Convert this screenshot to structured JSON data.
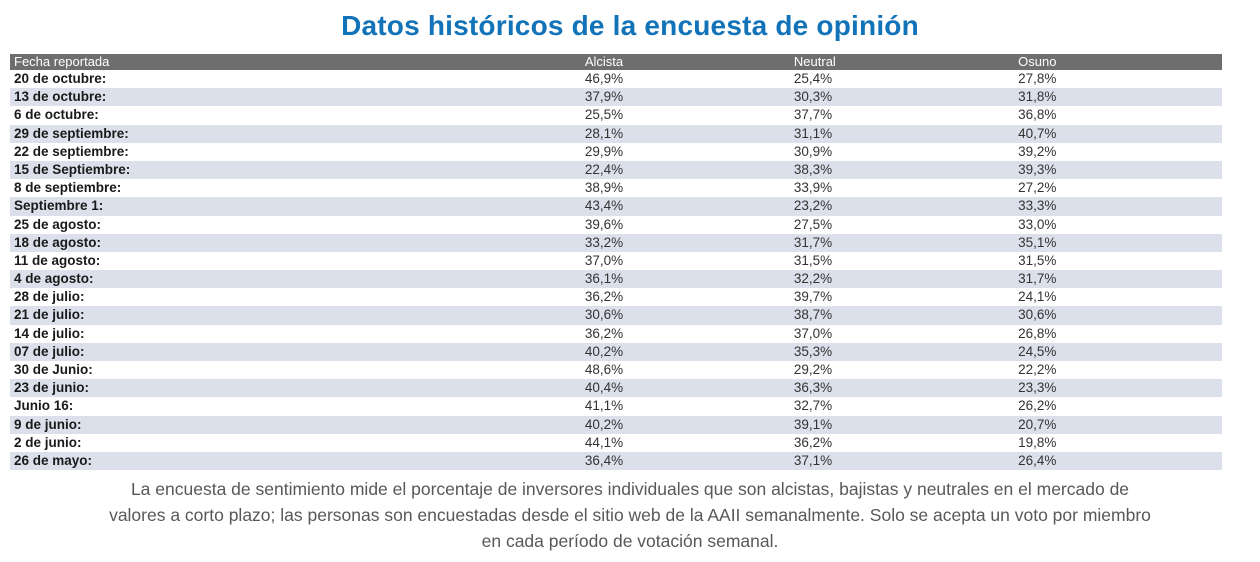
{
  "title": "Datos históricos de la encuesta de opinión",
  "colors": {
    "title": "#1273b9",
    "header_bg": "#6e6e6e",
    "header_text": "#ffffff",
    "stripe_bg": "#dbe0eb",
    "footer_text": "#58585a"
  },
  "chart_data": {
    "type": "table",
    "title": "Datos históricos de la encuesta de opinión",
    "columns": [
      "Fecha reportada",
      "Alcista",
      "Neutral",
      "Osuno"
    ],
    "rows": [
      [
        "20 de octubre:",
        "46,9%",
        "25,4%",
        "27,8%"
      ],
      [
        "13 de octubre:",
        "37,9%",
        "30,3%",
        "31,8%"
      ],
      [
        "6 de octubre:",
        "25,5%",
        "37,7%",
        "36,8%"
      ],
      [
        "29 de septiembre:",
        "28,1%",
        "31,1%",
        "40,7%"
      ],
      [
        "22 de septiembre:",
        "29,9%",
        "30,9%",
        "39,2%"
      ],
      [
        "15 de Septiembre:",
        "22,4%",
        "38,3%",
        "39,3%"
      ],
      [
        "8 de septiembre:",
        "38,9%",
        "33,9%",
        "27,2%"
      ],
      [
        "Septiembre 1:",
        "43,4%",
        "23,2%",
        "33,3%"
      ],
      [
        "25 de agosto:",
        "39,6%",
        "27,5%",
        "33,0%"
      ],
      [
        "18 de agosto:",
        "33,2%",
        "31,7%",
        "35,1%"
      ],
      [
        "11 de agosto:",
        "37,0%",
        "31,5%",
        "31,5%"
      ],
      [
        "4 de agosto:",
        "36,1%",
        "32,2%",
        "31,7%"
      ],
      [
        "28 de julio:",
        "36,2%",
        "39,7%",
        "24,1%"
      ],
      [
        "21 de julio:",
        "30,6%",
        "38,7%",
        "30,6%"
      ],
      [
        "14 de julio:",
        "36,2%",
        "37,0%",
        "26,8%"
      ],
      [
        "07 de julio:",
        "40,2%",
        "35,3%",
        "24,5%"
      ],
      [
        "30 de Junio:",
        "48,6%",
        "29,2%",
        "22,2%"
      ],
      [
        "23 de junio:",
        "40,4%",
        "36,3%",
        "23,3%"
      ],
      [
        "Junio 16:",
        "41,1%",
        "32,7%",
        "26,2%"
      ],
      [
        "9 de junio:",
        "40,2%",
        "39,1%",
        "20,7%"
      ],
      [
        "2 de junio:",
        "44,1%",
        "36,2%",
        "19,8%"
      ],
      [
        "26 de mayo:",
        "36,4%",
        "37,1%",
        "26,4%"
      ]
    ]
  },
  "footer": {
    "text": "La encuesta de sentimiento mide el porcentaje de inversores individuales que son alcistas, bajistas y neutrales en el mercado de valores a corto plazo; las personas son encuestadas desde el sitio web de la AAII semanalmente. Solo se acepta un voto por miembro en cada período de votación semanal."
  }
}
